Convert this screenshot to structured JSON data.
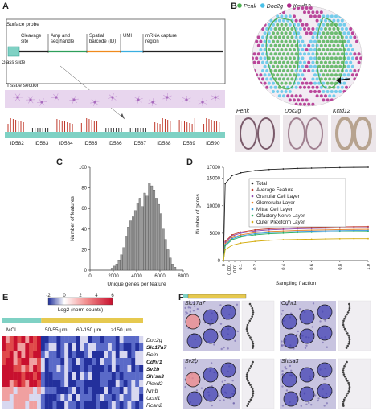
{
  "panels": {
    "a": "A",
    "b": "B",
    "c": "C",
    "d": "D",
    "e": "E",
    "f": "F"
  },
  "panel_a": {
    "surface_probe": "Surface probe",
    "segments": [
      {
        "label1": "Cleavage",
        "label2": "site",
        "color": "#222222"
      },
      {
        "label1": "Amp and",
        "label2": "seq handle",
        "color": "#2e9e5a"
      },
      {
        "label1": "Spatial",
        "label2": "barcode (ID)",
        "color": "#f08a1c"
      },
      {
        "label1": "UMI",
        "label2": "",
        "color": "#3aaee0"
      },
      {
        "label1": "mRNA capture",
        "label2": "region",
        "color": "#222222"
      }
    ],
    "glass_slide": "Glass slide",
    "tissue_section": "Tissue section",
    "ids": [
      "ID582",
      "ID583",
      "ID584",
      "ID585",
      "ID586",
      "ID587",
      "ID588",
      "ID589",
      "ID590"
    ]
  },
  "panel_b": {
    "legend": [
      {
        "name": "Penk",
        "color": "#4caf50"
      },
      {
        "name": "Doc2g",
        "color": "#49c0e8"
      },
      {
        "name": "Kctd12",
        "color": "#b0288a"
      }
    ],
    "thumbs": [
      "Penk",
      "Doc2g",
      "Kctd12"
    ]
  },
  "chart_data": [
    {
      "panel": "C",
      "type": "bar",
      "xlabel": "Unique genes per feature",
      "ylabel": "Number of features",
      "xlim": [
        0,
        8000
      ],
      "ylim": [
        0,
        100
      ],
      "xticks": [
        0,
        2000,
        4000,
        6000,
        8000
      ],
      "yticks": [
        0,
        20,
        40,
        60,
        80,
        100
      ],
      "bin_width": 200,
      "bin_starts": [
        1800,
        2000,
        2200,
        2400,
        2600,
        2800,
        3000,
        3200,
        3400,
        3600,
        3800,
        4000,
        4200,
        4400,
        4600,
        4800,
        5000,
        5200,
        5400,
        5600,
        5800,
        6000,
        6200,
        6400,
        6600,
        6800,
        7000,
        7200
      ],
      "values": [
        2,
        4,
        6,
        10,
        15,
        22,
        33,
        42,
        48,
        52,
        58,
        65,
        70,
        62,
        75,
        72,
        85,
        82,
        78,
        70,
        64,
        55,
        40,
        30,
        20,
        12,
        6,
        3
      ]
    },
    {
      "panel": "D",
      "type": "line",
      "xlabel": "Sampling fraction",
      "ylabel": "Number of genes",
      "xlim": [
        0,
        1
      ],
      "ylim": [
        0,
        17000
      ],
      "xticks": [
        0,
        0.001,
        0.01,
        0.1,
        0.2,
        0.4,
        0.6,
        0.8,
        1.0
      ],
      "xtick_labels": [
        "0",
        "0.001",
        "0.01",
        "0.1",
        "0.2",
        "0.4",
        "0.6",
        "0.8",
        "1.0"
      ],
      "yticks": [
        0,
        5000,
        10000,
        15000,
        17000
      ],
      "x": [
        0,
        0.01,
        0.05,
        0.1,
        0.2,
        0.3,
        0.4,
        0.5,
        0.6,
        0.7,
        0.8,
        0.9,
        1.0
      ],
      "series": [
        {
          "name": "Total",
          "color": "#222222",
          "values": [
            0,
            14000,
            15500,
            16000,
            16400,
            16600,
            16700,
            16800,
            16850,
            16900,
            16950,
            16980,
            17000
          ]
        },
        {
          "name": "Average Feature",
          "color": "#c0392b",
          "values": [
            0,
            3500,
            4700,
            5200,
            5600,
            5800,
            5900,
            6000,
            6050,
            6100,
            6150,
            6180,
            6200
          ]
        },
        {
          "name": "Granular Cell Layer",
          "color": "#8e44ad",
          "values": [
            0,
            3300,
            4500,
            5000,
            5400,
            5600,
            5700,
            5800,
            5850,
            5900,
            5950,
            5980,
            6000
          ]
        },
        {
          "name": "Glomerular Layer",
          "color": "#e67e22",
          "values": [
            0,
            3100,
            4200,
            4700,
            5100,
            5300,
            5400,
            5500,
            5550,
            5600,
            5650,
            5680,
            5700
          ]
        },
        {
          "name": "Mitral Cell Layer",
          "color": "#3498db",
          "values": [
            0,
            2900,
            4000,
            4500,
            4900,
            5100,
            5200,
            5300,
            5350,
            5400,
            5450,
            5480,
            5500
          ]
        },
        {
          "name": "Olfactory Nerve Layer",
          "color": "#27ae60",
          "values": [
            0,
            2700,
            3800,
            4300,
            4700,
            4900,
            5000,
            5100,
            5150,
            5200,
            5250,
            5280,
            5300
          ]
        },
        {
          "name": "Outer Plexiform Layer",
          "color": "#d4ac0d",
          "values": [
            0,
            2000,
            2800,
            3200,
            3500,
            3700,
            3800,
            3850,
            3900,
            3950,
            3980,
            4000,
            4000
          ]
        }
      ]
    },
    {
      "panel": "E",
      "type": "heatmap",
      "colorbar_ticks": [
        "-2",
        "0",
        "2",
        "4",
        "6"
      ],
      "colorbar_label": "Log2 (norm counts)",
      "groups": [
        "MCL",
        "50-55 µm",
        "60-150 µm",
        ">150 µm"
      ],
      "rows": [
        "Doc2g",
        "Slc17a7",
        "Reln",
        "Cdhr1",
        "Sv2b",
        "Shisa3",
        "Plcxd2",
        "Nmb",
        "Uchl1",
        "Rcan2"
      ],
      "bold_rows": [
        "Slc17a7",
        "Cdhr1",
        "Sv2b",
        "Shisa3"
      ]
    }
  ],
  "panel_f": {
    "genes": [
      "Slc17a7",
      "Cdhr1",
      "Sv2b",
      "Shisa3"
    ]
  }
}
